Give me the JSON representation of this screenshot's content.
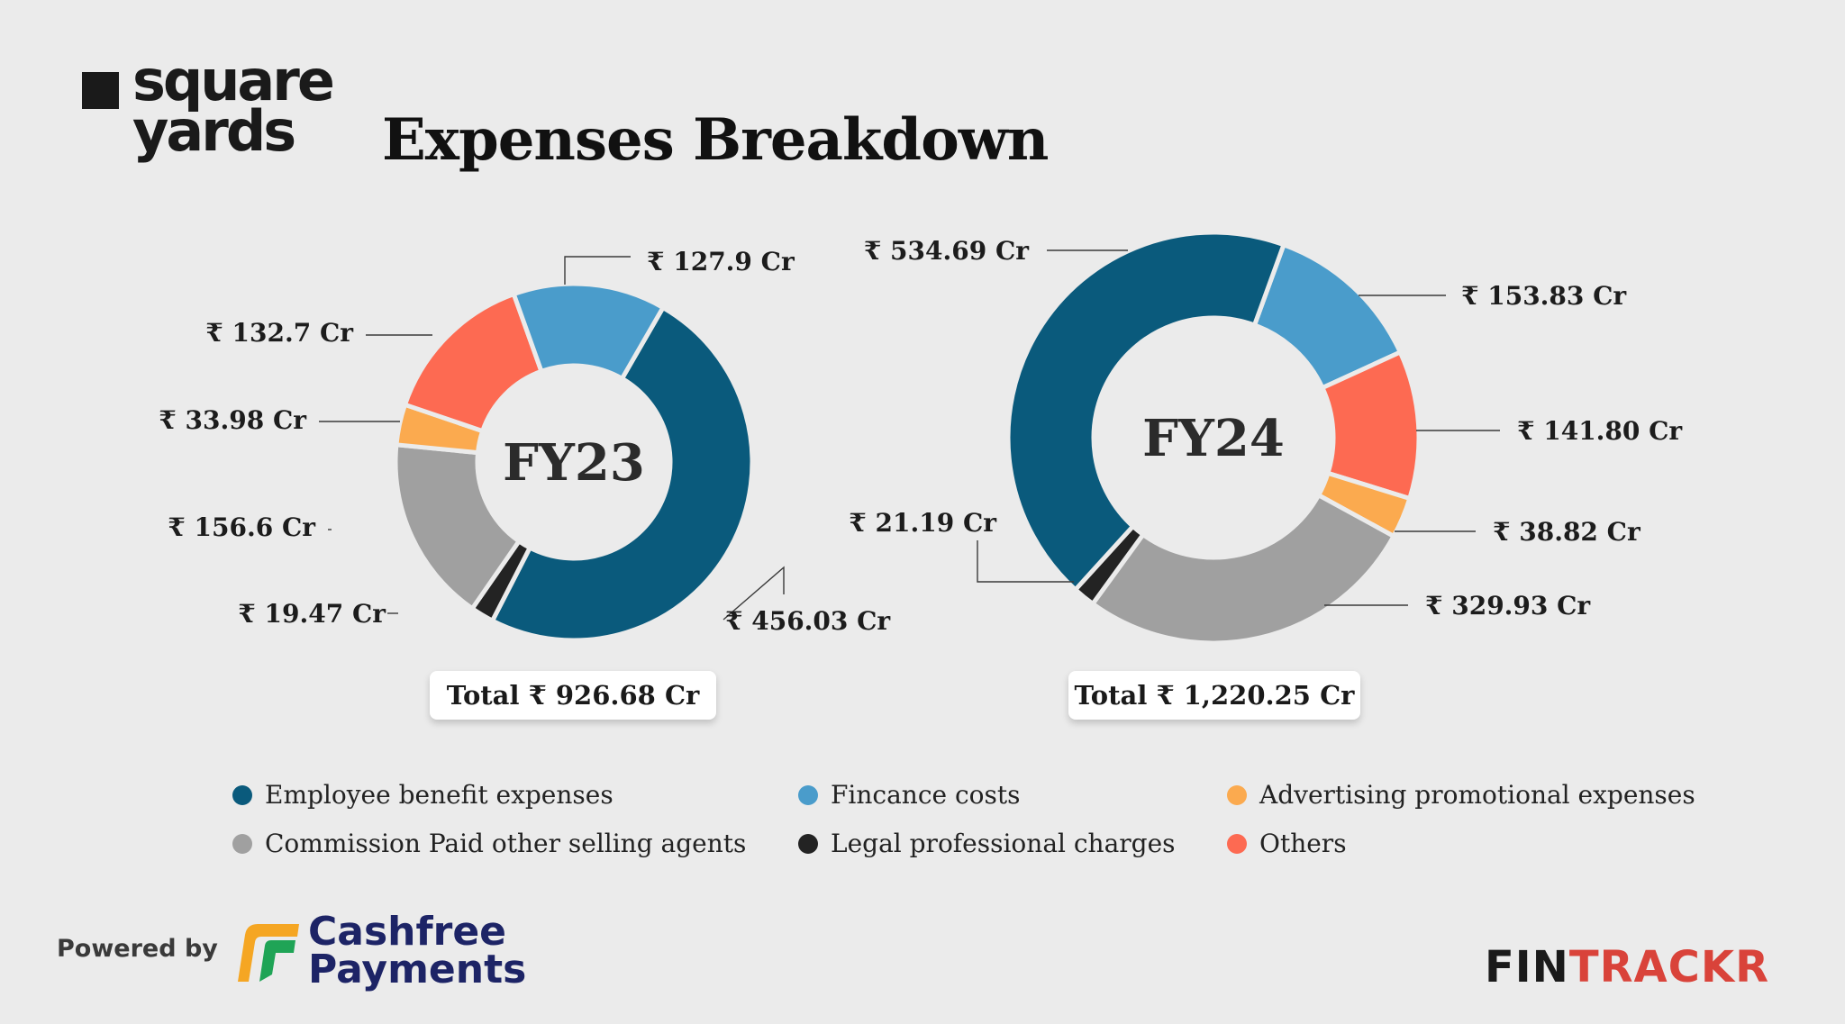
{
  "brand": {
    "logo_line1": "square",
    "logo_line2": "yards"
  },
  "title": "Expenses Breakdown",
  "colors": {
    "employee": "#0a5a7c",
    "finance": "#4a9ccb",
    "advertising": "#fbaa4f",
    "commission": "#a0a0a0",
    "legal": "#232323",
    "others": "#fd6a52"
  },
  "chart_data": [
    {
      "type": "pie",
      "variant": "donut",
      "center_label": "FY23",
      "total_label": "Total ₹ 926.68 Cr",
      "slices": [
        {
          "name": "Employee benefit expenses",
          "value": 456.03,
          "label": "₹ 456.03 Cr",
          "color_key": "employee"
        },
        {
          "name": "Legal professional charges",
          "value": 19.47,
          "label": "₹ 19.47 Cr",
          "color_key": "legal"
        },
        {
          "name": "Commission Paid other selling agents",
          "value": 156.6,
          "label": "₹ 156.6 Cr",
          "color_key": "commission"
        },
        {
          "name": "Advertising promotional expenses",
          "value": 33.98,
          "label": "₹ 33.98 Cr",
          "color_key": "advertising"
        },
        {
          "name": "Others",
          "value": 132.7,
          "label": "₹ 132.7 Cr",
          "color_key": "others"
        },
        {
          "name": "Fincance costs",
          "value": 127.9,
          "label": "₹ 127.9 Cr",
          "color_key": "finance"
        }
      ]
    },
    {
      "type": "pie",
      "variant": "donut",
      "center_label": "FY24",
      "total_label": "Total ₹ 1,220.25 Cr",
      "slices": [
        {
          "name": "Fincance costs",
          "value": 153.83,
          "label": "₹  153.83 Cr",
          "color_key": "finance"
        },
        {
          "name": "Others",
          "value": 141.8,
          "label": "₹  141.80 Cr",
          "color_key": "others"
        },
        {
          "name": "Advertising promotional expenses",
          "value": 38.82,
          "label": "₹  38.82 Cr",
          "color_key": "advertising"
        },
        {
          "name": "Commission Paid other selling agents",
          "value": 329.93,
          "label": "₹  329.93 Cr",
          "color_key": "commission"
        },
        {
          "name": "Legal professional charges",
          "value": 21.19,
          "label": "₹  21.19 Cr",
          "color_key": "legal"
        },
        {
          "name": "Employee benefit expenses",
          "value": 534.69,
          "label": "₹  534.69 Cr",
          "color_key": "employee"
        }
      ]
    }
  ],
  "legend": [
    {
      "label": "Employee benefit expenses",
      "color_key": "employee"
    },
    {
      "label": "Fincance costs",
      "color_key": "finance"
    },
    {
      "label": "Advertising promotional expenses",
      "color_key": "advertising"
    },
    {
      "label": "Commission Paid other selling agents",
      "color_key": "commission"
    },
    {
      "label": "Legal professional charges",
      "color_key": "legal"
    },
    {
      "label": "Others",
      "color_key": "others"
    }
  ],
  "footer": {
    "powered_by": "Powered by",
    "sponsor_line1": "Cashfree",
    "sponsor_line2": "Payments",
    "brand_part1": "FIN",
    "brand_part2": "TRACKR"
  }
}
